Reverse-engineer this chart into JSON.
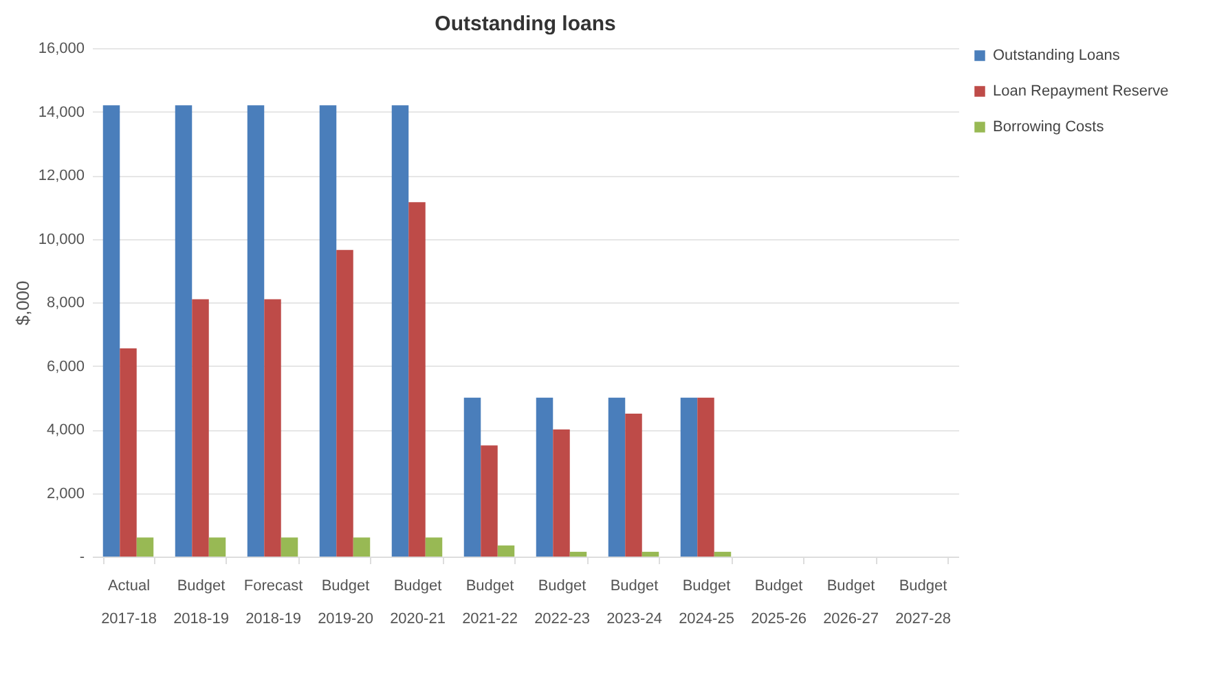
{
  "chart_data": {
    "type": "bar",
    "title": "Outstanding loans",
    "ylabel": "$,000",
    "categories": [
      "Actual 2017-18",
      "Budget 2018-19",
      "Forecast 2018-19",
      "Budget 2019-20",
      "Budget 2020-21",
      "Budget 2021-22",
      "Budget 2022-23",
      "Budget 2023-24",
      "Budget 2024-25",
      "Budget 2025-26",
      "Budget 2026-27",
      "Budget 2027-28"
    ],
    "series": [
      {
        "name": "Outstanding Loans",
        "color": "#4a7ebb",
        "values": [
          14200,
          14200,
          14200,
          14200,
          14200,
          5000,
          5000,
          5000,
          5000,
          null,
          null,
          null
        ]
      },
      {
        "name": "Loan Repayment Reserve",
        "color": "#be4b48",
        "values": [
          6550,
          8100,
          8100,
          9650,
          11150,
          3500,
          4000,
          4500,
          5000,
          null,
          null,
          null
        ]
      },
      {
        "name": "Borrowing Costs",
        "color": "#98b954",
        "values": [
          600,
          600,
          600,
          600,
          600,
          350,
          150,
          150,
          150,
          null,
          null,
          null
        ]
      }
    ],
    "ylim": [
      0,
      16000
    ],
    "yticks": [
      {
        "value": 0,
        "label": "-"
      },
      {
        "value": 2000,
        "label": "2,000"
      },
      {
        "value": 4000,
        "label": "4,000"
      },
      {
        "value": 6000,
        "label": "6,000"
      },
      {
        "value": 8000,
        "label": "8,000"
      },
      {
        "value": 10000,
        "label": "10,000"
      },
      {
        "value": 12000,
        "label": "12,000"
      },
      {
        "value": 14000,
        "label": "14,000"
      },
      {
        "value": 16000,
        "label": "16,000"
      }
    ],
    "grid": "y",
    "legend": "right"
  }
}
